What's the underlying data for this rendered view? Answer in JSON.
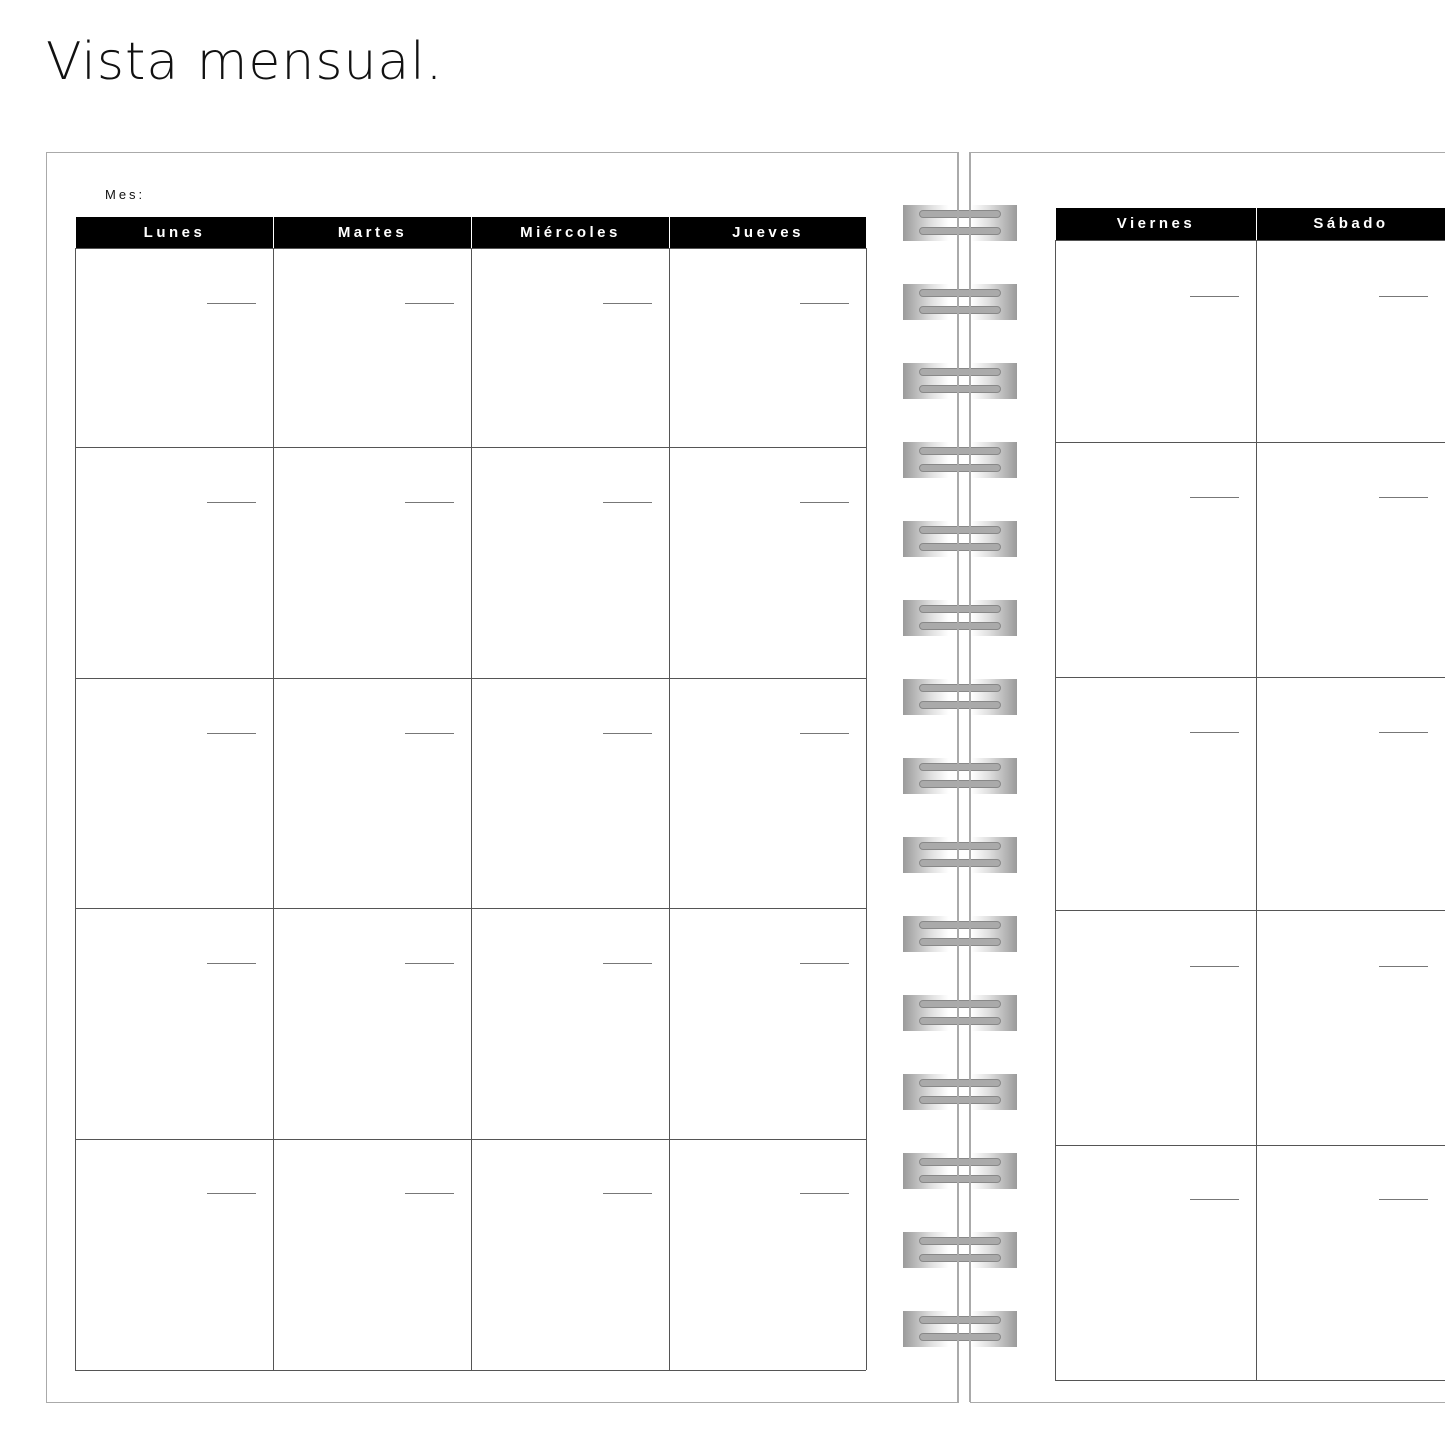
{
  "title": "Vista mensual.",
  "left_page": {
    "month_label": "Mes:",
    "days": [
      "Lunes",
      "Martes",
      "Miércoles",
      "Jueves"
    ],
    "weeks": 5
  },
  "right_page": {
    "days": [
      "Viernes",
      "Sábado"
    ],
    "weeks": 5
  },
  "binding": {
    "rings": 15,
    "color": "#aaaaaa"
  }
}
